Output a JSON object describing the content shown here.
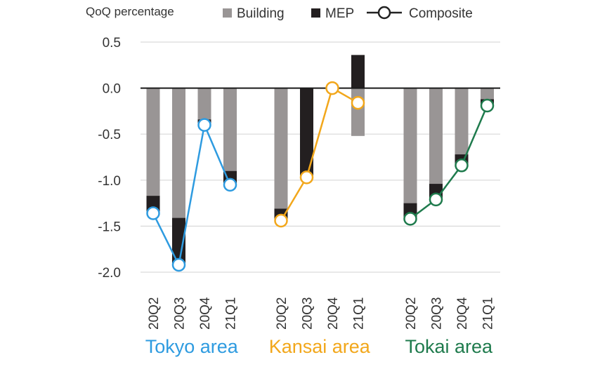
{
  "chart_data": {
    "type": "bar",
    "ylabel": "QoQ percentage",
    "ylim": [
      -2.0,
      0.5
    ],
    "yticks": [
      0.5,
      0.0,
      -0.5,
      -1.0,
      -1.5,
      -2.0
    ],
    "ytick_labels": [
      "0.5",
      "0.0",
      "-0.5",
      "-1.0",
      "-1.5",
      "-2.0"
    ],
    "grid": true,
    "legend": {
      "position": "top",
      "entries": [
        {
          "name": "Building",
          "kind": "bar",
          "color": "#999595"
        },
        {
          "name": "MEP",
          "kind": "bar",
          "color": "#231f20"
        },
        {
          "name": "Composite",
          "kind": "line-marker",
          "color": "#222222"
        }
      ]
    },
    "groups": [
      {
        "name": "Tokyo area",
        "color": "#2e9be0",
        "categories": [
          "20Q2",
          "20Q3",
          "20Q4",
          "21Q1"
        ],
        "building": [
          -1.17,
          -1.41,
          -0.34,
          -0.9
        ],
        "mep": [
          -0.19,
          -0.51,
          -0.06,
          -0.15
        ],
        "composite": [
          -1.36,
          -1.92,
          -0.4,
          -1.05
        ]
      },
      {
        "name": "Kansai area",
        "color": "#f2a71b",
        "categories": [
          "20Q2",
          "20Q3",
          "20Q4",
          "21Q1"
        ],
        "building": [
          -1.31,
          0.0,
          0.0,
          -0.52
        ],
        "mep": [
          -0.13,
          -0.97,
          0.0,
          0.36
        ],
        "composite": [
          -1.44,
          -0.97,
          0.0,
          -0.16
        ]
      },
      {
        "name": "Tokai area",
        "color": "#1f7b4d",
        "categories": [
          "20Q2",
          "20Q3",
          "20Q4",
          "21Q1"
        ],
        "building": [
          -1.25,
          -1.04,
          -0.72,
          -0.12
        ],
        "mep": [
          -0.17,
          -0.17,
          -0.12,
          -0.07
        ],
        "composite": [
          -1.42,
          -1.21,
          -0.84,
          -0.19
        ]
      }
    ]
  }
}
